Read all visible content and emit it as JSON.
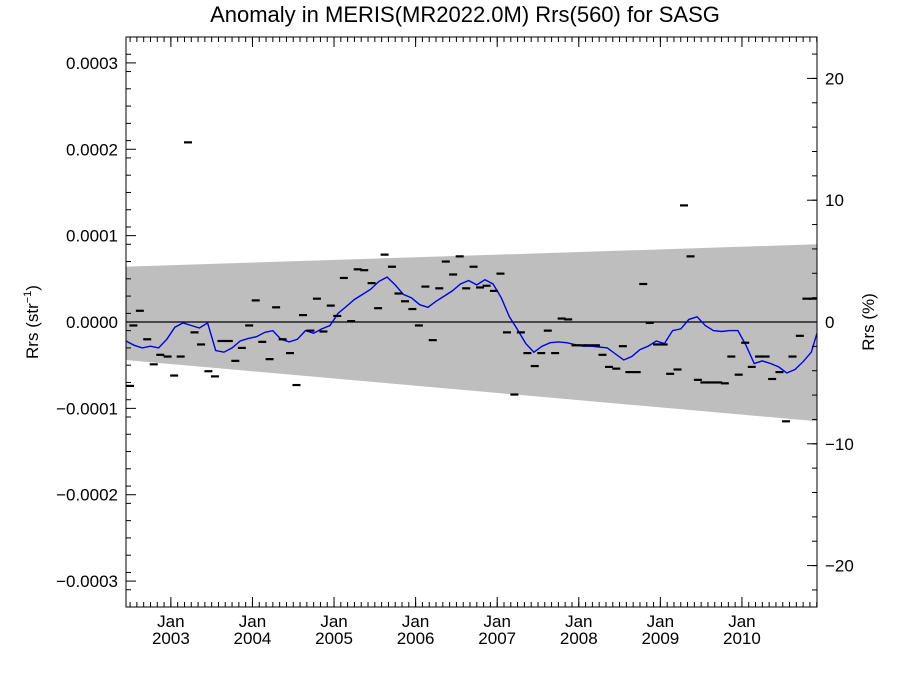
{
  "chart_data": {
    "type": "scatter",
    "title": "Anomaly in MERIS(MR2022.0M) Rrs(560) for SASG",
    "ylabel_left": "Rrs (str",
    "ylabel_left_sup": "−1",
    "ylabel_left_close": ")",
    "ylabel_right": "Rrs (%)",
    "xlim": [
      2002.45,
      2010.92
    ],
    "ylim": [
      -0.00033,
      0.00033
    ],
    "ylim_right": [
      -23.4,
      23.4
    ],
    "grid": false,
    "legend": "none",
    "x_ticks": [
      {
        "x": 2003.0,
        "top": "Jan",
        "bottom": "2003"
      },
      {
        "x": 2004.0,
        "top": "Jan",
        "bottom": "2004"
      },
      {
        "x": 2005.0,
        "top": "Jan",
        "bottom": "2005"
      },
      {
        "x": 2006.0,
        "top": "Jan",
        "bottom": "2006"
      },
      {
        "x": 2007.0,
        "top": "Jan",
        "bottom": "2007"
      },
      {
        "x": 2008.0,
        "top": "Jan",
        "bottom": "2008"
      },
      {
        "x": 2009.0,
        "top": "Jan",
        "bottom": "2009"
      },
      {
        "x": 2010.0,
        "top": "Jan",
        "bottom": "2010"
      }
    ],
    "y_ticks_left": [
      {
        "v": 0.0003,
        "label": "0.0003"
      },
      {
        "v": 0.0002,
        "label": "0.0002"
      },
      {
        "v": 0.0001,
        "label": "0.0001"
      },
      {
        "v": 0.0,
        "label": "0.0000"
      },
      {
        "v": -0.0001,
        "label": "−0.0001"
      },
      {
        "v": -0.0002,
        "label": "−0.0002"
      },
      {
        "v": -0.0003,
        "label": "−0.0003"
      }
    ],
    "y_ticks_right": [
      {
        "v": 20,
        "label": "20"
      },
      {
        "v": 10,
        "label": "10"
      },
      {
        "v": 0,
        "label": "0"
      },
      {
        "v": -10,
        "label": "−10"
      },
      {
        "v": -20,
        "label": "−20"
      }
    ],
    "uncertainty_band": {
      "x": [
        2002.45,
        2010.92
      ],
      "upper": [
        6.4e-05,
        9e-05
      ],
      "lower": [
        -4.4e-05,
        -0.000115
      ]
    },
    "zero_line": 0.0,
    "colors": {
      "points": "#000000",
      "running_mean": "#0000e6",
      "band": "#bebebe",
      "zero_line": "#000000"
    },
    "points": [
      {
        "x": 2002.5,
        "y": -7.4e-05
      },
      {
        "x": 2002.54,
        "y": -4e-06
      },
      {
        "x": 2002.62,
        "y": 1.3e-05
      },
      {
        "x": 2002.71,
        "y": -2e-05
      },
      {
        "x": 2002.79,
        "y": -4.9e-05
      },
      {
        "x": 2002.87,
        "y": -3.8e-05
      },
      {
        "x": 2002.96,
        "y": -4e-05
      },
      {
        "x": 2003.04,
        "y": -6.2e-05
      },
      {
        "x": 2003.12,
        "y": -4e-05
      },
      {
        "x": 2003.21,
        "y": 0.000208
      },
      {
        "x": 2003.29,
        "y": -1.2e-05
      },
      {
        "x": 2003.37,
        "y": -2.6e-05
      },
      {
        "x": 2003.46,
        "y": -5.7e-05
      },
      {
        "x": 2003.54,
        "y": -6.3e-05
      },
      {
        "x": 2003.62,
        "y": -2.2e-05
      },
      {
        "x": 2003.71,
        "y": -2.2e-05
      },
      {
        "x": 2003.79,
        "y": -4.5e-05
      },
      {
        "x": 2003.87,
        "y": -3e-05
      },
      {
        "x": 2003.96,
        "y": -4e-06
      },
      {
        "x": 2004.04,
        "y": 2.5e-05
      },
      {
        "x": 2004.12,
        "y": -2.3e-05
      },
      {
        "x": 2004.21,
        "y": -4.3e-05
      },
      {
        "x": 2004.29,
        "y": 1.7e-05
      },
      {
        "x": 2004.37,
        "y": -2e-05
      },
      {
        "x": 2004.46,
        "y": -3.6e-05
      },
      {
        "x": 2004.54,
        "y": -7.3e-05
      },
      {
        "x": 2004.62,
        "y": 8e-06
      },
      {
        "x": 2004.71,
        "y": -1e-05
      },
      {
        "x": 2004.79,
        "y": 2.7e-05
      },
      {
        "x": 2004.87,
        "y": -1.1e-05
      },
      {
        "x": 2004.96,
        "y": 1.9e-05
      },
      {
        "x": 2005.04,
        "y": 7e-06
      },
      {
        "x": 2005.12,
        "y": 5.1e-05
      },
      {
        "x": 2005.21,
        "y": 1e-06
      },
      {
        "x": 2005.29,
        "y": 6.1e-05
      },
      {
        "x": 2005.37,
        "y": 6e-05
      },
      {
        "x": 2005.46,
        "y": 4.5e-05
      },
      {
        "x": 2005.54,
        "y": 1.6e-05
      },
      {
        "x": 2005.62,
        "y": 7.8e-05
      },
      {
        "x": 2005.71,
        "y": 6.4e-05
      },
      {
        "x": 2005.79,
        "y": 3.3e-05
      },
      {
        "x": 2005.87,
        "y": 2.4e-05
      },
      {
        "x": 2005.96,
        "y": 1.5e-05
      },
      {
        "x": 2006.04,
        "y": -4e-06
      },
      {
        "x": 2006.12,
        "y": 4.1e-05
      },
      {
        "x": 2006.21,
        "y": -2.1e-05
      },
      {
        "x": 2006.29,
        "y": 3.9e-05
      },
      {
        "x": 2006.37,
        "y": 7e-05
      },
      {
        "x": 2006.46,
        "y": 5.5e-05
      },
      {
        "x": 2006.54,
        "y": 7.6e-05
      },
      {
        "x": 2006.62,
        "y": 3.9e-05
      },
      {
        "x": 2006.71,
        "y": 6.4e-05
      },
      {
        "x": 2006.79,
        "y": 4e-05
      },
      {
        "x": 2006.87,
        "y": 4.2e-05
      },
      {
        "x": 2006.96,
        "y": 3.6e-05
      },
      {
        "x": 2007.04,
        "y": 5.6e-05
      },
      {
        "x": 2007.12,
        "y": -1.2e-05
      },
      {
        "x": 2007.21,
        "y": -8.4e-05
      },
      {
        "x": 2007.29,
        "y": -1.2e-05
      },
      {
        "x": 2007.37,
        "y": -3.6e-05
      },
      {
        "x": 2007.46,
        "y": -5.1e-05
      },
      {
        "x": 2007.54,
        "y": -3.6e-05
      },
      {
        "x": 2007.62,
        "y": -1e-05
      },
      {
        "x": 2007.71,
        "y": -3.6e-05
      },
      {
        "x": 2007.79,
        "y": 4e-06
      },
      {
        "x": 2007.87,
        "y": 3e-06
      },
      {
        "x": 2007.96,
        "y": -2.7e-05
      },
      {
        "x": 2008.04,
        "y": -2.7e-05
      },
      {
        "x": 2008.12,
        "y": -2.7e-05
      },
      {
        "x": 2008.21,
        "y": -2.7e-05
      },
      {
        "x": 2008.29,
        "y": -3.8e-05
      },
      {
        "x": 2008.37,
        "y": -5.2e-05
      },
      {
        "x": 2008.46,
        "y": -5.4e-05
      },
      {
        "x": 2008.54,
        "y": -2.8e-05
      },
      {
        "x": 2008.62,
        "y": -5.8e-05
      },
      {
        "x": 2008.71,
        "y": -5.8e-05
      },
      {
        "x": 2008.79,
        "y": 4.4e-05
      },
      {
        "x": 2008.87,
        "y": -1e-06
      },
      {
        "x": 2008.96,
        "y": -2.6e-05
      },
      {
        "x": 2009.04,
        "y": -2.6e-05
      },
      {
        "x": 2009.12,
        "y": -6e-05
      },
      {
        "x": 2009.21,
        "y": -5.5e-05
      },
      {
        "x": 2009.29,
        "y": 0.000135
      },
      {
        "x": 2009.37,
        "y": 7.6e-05
      },
      {
        "x": 2009.46,
        "y": -6.7e-05
      },
      {
        "x": 2009.54,
        "y": -7e-05
      },
      {
        "x": 2009.62,
        "y": -7e-05
      },
      {
        "x": 2009.71,
        "y": -7e-05
      },
      {
        "x": 2009.79,
        "y": -7.1e-05
      },
      {
        "x": 2009.87,
        "y": -4e-05
      },
      {
        "x": 2009.96,
        "y": -6.1e-05
      },
      {
        "x": 2010.04,
        "y": -2.4e-05
      },
      {
        "x": 2010.12,
        "y": -5.2e-05
      },
      {
        "x": 2010.21,
        "y": -4e-05
      },
      {
        "x": 2010.29,
        "y": -4e-05
      },
      {
        "x": 2010.37,
        "y": -6.6e-05
      },
      {
        "x": 2010.46,
        "y": -5.8e-05
      },
      {
        "x": 2010.54,
        "y": -0.000115
      },
      {
        "x": 2010.62,
        "y": -4e-05
      },
      {
        "x": 2010.71,
        "y": -1.6e-05
      },
      {
        "x": 2010.79,
        "y": 2.7e-05
      },
      {
        "x": 2010.87,
        "y": 2.7e-05
      }
    ],
    "running_mean": {
      "x": [
        2002.45,
        2002.55,
        2002.65,
        2002.75,
        2002.85,
        2002.95,
        2003.05,
        2003.15,
        2003.25,
        2003.35,
        2003.45,
        2003.55,
        2003.65,
        2003.75,
        2003.85,
        2003.95,
        2004.05,
        2004.15,
        2004.25,
        2004.35,
        2004.45,
        2004.55,
        2004.65,
        2004.75,
        2004.85,
        2004.95,
        2005.05,
        2005.15,
        2005.25,
        2005.35,
        2005.45,
        2005.55,
        2005.65,
        2005.75,
        2005.85,
        2005.95,
        2006.05,
        2006.15,
        2006.25,
        2006.35,
        2006.45,
        2006.55,
        2006.65,
        2006.75,
        2006.85,
        2006.95,
        2007.05,
        2007.15,
        2007.25,
        2007.35,
        2007.45,
        2007.55,
        2007.65,
        2007.75,
        2007.85,
        2007.95,
        2008.05,
        2008.15,
        2008.25,
        2008.35,
        2008.45,
        2008.55,
        2008.65,
        2008.75,
        2008.85,
        2008.95,
        2009.05,
        2009.15,
        2009.25,
        2009.35,
        2009.45,
        2009.55,
        2009.65,
        2009.75,
        2009.85,
        2009.95,
        2010.05,
        2010.15,
        2010.25,
        2010.35,
        2010.45,
        2010.55,
        2010.65,
        2010.75,
        2010.85,
        2010.92
      ],
      "y": [
        -2.2e-05,
        -2.7e-05,
        -3e-05,
        -2.8e-05,
        -3e-05,
        -2e-05,
        -6e-06,
        -1e-06,
        -4e-06,
        -7e-06,
        -1e-06,
        -3.3e-05,
        -3.5e-05,
        -3e-05,
        -2.2e-05,
        -1.9e-05,
        -1.7e-05,
        -1.2e-05,
        -1e-05,
        -2e-05,
        -2.3e-05,
        -2e-05,
        -1e-05,
        -1.3e-05,
        -8e-06,
        -4e-06,
        1e-05,
        1.8e-05,
        2.6e-05,
        3.2e-05,
        3.8e-05,
        4.7e-05,
        5.2e-05,
        4.3e-05,
        3.2e-05,
        2.8e-05,
        2e-05,
        1.7e-05,
        2.4e-05,
        3e-05,
        3.6e-05,
        4.4e-05,
        4.8e-05,
        4.3e-05,
        4.9e-05,
        4.4e-05,
        2.8e-05,
        6e-06,
        -9e-06,
        -2.5e-05,
        -3.5e-05,
        -2.8e-05,
        -2.4e-05,
        -2.3e-05,
        -2.4e-05,
        -2.6e-05,
        -2.8e-05,
        -2.8e-05,
        -2.9e-05,
        -3e-05,
        -3.7e-05,
        -4.4e-05,
        -4e-05,
        -3.2e-05,
        -2.8e-05,
        -2.2e-05,
        -2.5e-05,
        -1e-05,
        -8e-06,
        3e-06,
        6e-06,
        -4e-06,
        -1e-05,
        -1.1e-05,
        -1e-05,
        -1e-05,
        -2.7e-05,
        -4.8e-05,
        -4.5e-05,
        -4.8e-05,
        -5.2e-05,
        -5.9e-05,
        -5.5e-05,
        -4.6e-05,
        -3.5e-05,
        -1.3e-05
      ]
    }
  }
}
